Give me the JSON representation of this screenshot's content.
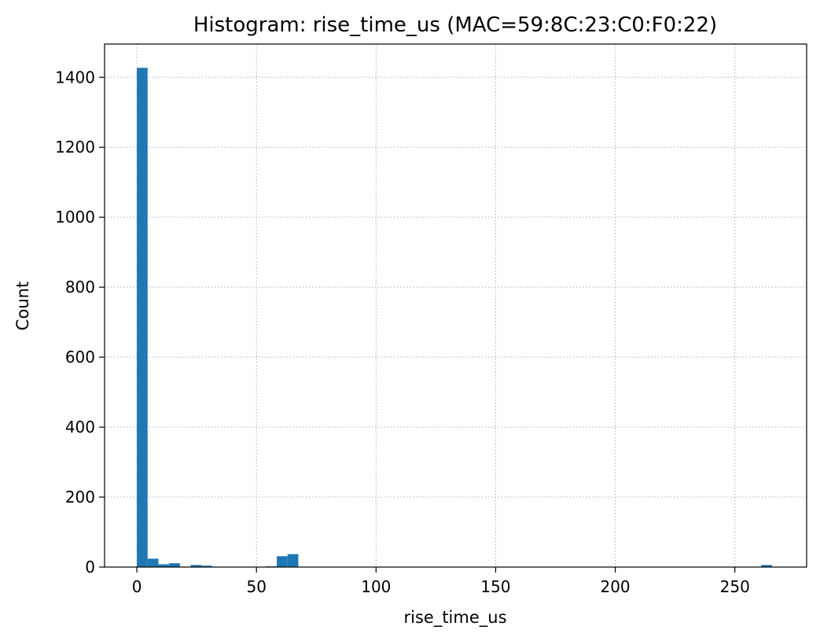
{
  "chart_data": {
    "type": "bar",
    "title": "Histogram: rise_time_us (MAC=59:8C:23:C0:F0:22)",
    "xlabel": "rise_time_us",
    "ylabel": "Count",
    "xlim": [
      -13.5,
      280
    ],
    "ylim": [
      0,
      1495
    ],
    "xticks": [
      0,
      50,
      100,
      150,
      200,
      250
    ],
    "yticks": [
      0,
      200,
      400,
      600,
      800,
      1000,
      1200,
      1400
    ],
    "grid": true,
    "bar_color": "#1f77b4",
    "bin_width": 4.5,
    "bins": [
      {
        "x0": 0.0,
        "count": 1427
      },
      {
        "x0": 4.5,
        "count": 24
      },
      {
        "x0": 9.0,
        "count": 8
      },
      {
        "x0": 13.5,
        "count": 11
      },
      {
        "x0": 18.0,
        "count": 1
      },
      {
        "x0": 22.5,
        "count": 6
      },
      {
        "x0": 27.0,
        "count": 4
      },
      {
        "x0": 31.5,
        "count": 1
      },
      {
        "x0": 54.0,
        "count": 2
      },
      {
        "x0": 58.5,
        "count": 31
      },
      {
        "x0": 63.0,
        "count": 37
      },
      {
        "x0": 261.0,
        "count": 6
      }
    ]
  }
}
